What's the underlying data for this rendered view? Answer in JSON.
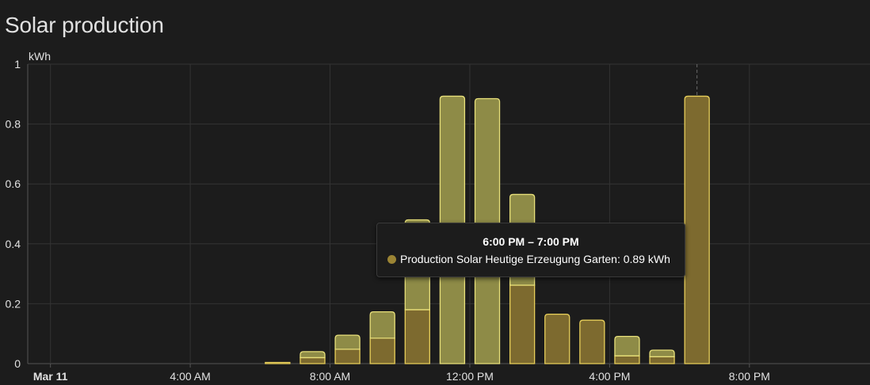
{
  "card": {
    "title": "Solar production"
  },
  "chart_data": {
    "type": "bar",
    "stacked": true,
    "unit": "kWh",
    "ylim": [
      0,
      1
    ],
    "y_ticks": [
      "0",
      "0.2",
      "0.4",
      "0.6",
      "0.8",
      "1"
    ],
    "x_ticks": [
      {
        "label": "Mar 11",
        "hour": 0,
        "bold": true
      },
      {
        "label": "4:00 AM",
        "hour": 4,
        "bold": false
      },
      {
        "label": "8:00 AM",
        "hour": 8,
        "bold": false
      },
      {
        "label": "12:00 PM",
        "hour": 12,
        "bold": false
      },
      {
        "label": "4:00 PM",
        "hour": 16,
        "bold": false
      },
      {
        "label": "8:00 PM",
        "hour": 20,
        "bold": false
      }
    ],
    "x_range_hours": [
      -0.65,
      23.45
    ],
    "hours": [
      6,
      7,
      8,
      9,
      10,
      11,
      12,
      13,
      14,
      15,
      16,
      17,
      18
    ],
    "series": [
      {
        "name": "Production Solar Heutige Erzeugung Garten",
        "fill": "#7d6a2f",
        "stroke": "#e8cf5a",
        "values": [
          0.004,
          0.02,
          0.048,
          0.085,
          0.18,
          0.0,
          0.0,
          0.262,
          0.165,
          0.145,
          0.026,
          0.023,
          0.893
        ]
      },
      {
        "name": "",
        "fill": "#8e8b47",
        "stroke": "#e8e07a",
        "values": [
          0.0,
          0.02,
          0.047,
          0.088,
          0.3,
          0.893,
          0.885,
          0.303,
          0.0,
          0.0,
          0.065,
          0.022,
          0.0
        ]
      }
    ],
    "highlight_hour": 18,
    "grid": true
  },
  "tooltip": {
    "title": "6:00 PM – 7:00 PM",
    "entry": "Production Solar Heutige Erzeugung Garten: 0.89 kWh",
    "dot_color": "#9b8434"
  }
}
